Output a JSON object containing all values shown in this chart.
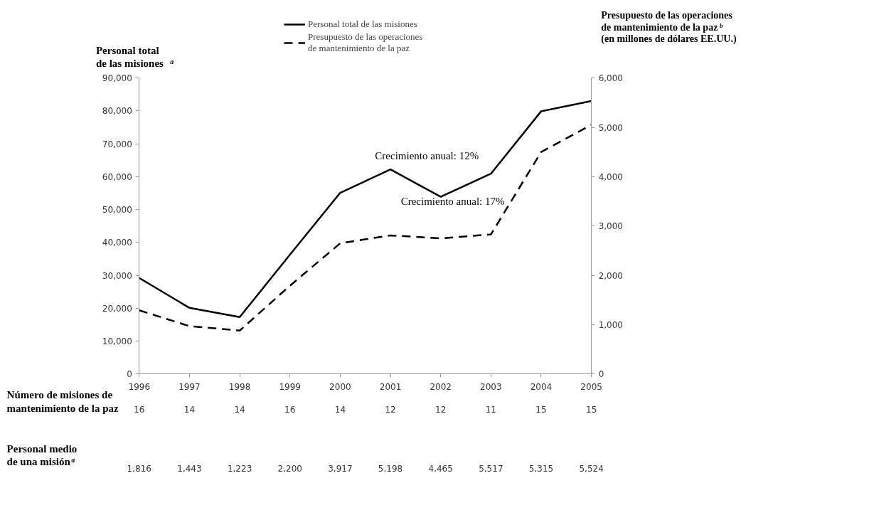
{
  "chart_data": {
    "type": "line",
    "ylabel": "Personal total\nde las misiones$^{a}$",
    "y2label": "Presupuesto de las operaciones\nde mantenimiento de la paz$^{b}$\n(en millones de dólares EE.UU.)",
    "x": [
      1996,
      1997,
      1998,
      1999,
      2000,
      2001,
      2002,
      2003,
      2004,
      2005
    ],
    "series": [
      {
        "name": "Personal total de las misiones",
        "color": "#000000",
        "line_style": "solid",
        "values": [
          29200,
          20100,
          17300,
          36300,
          55100,
          62200,
          53900,
          60900,
          79900,
          83000
        ]
      },
      {
        "name": "Presupuesto de las operaciones\nde mantenimiento de la paz",
        "color": "#000000",
        "line_style": "dashed",
        "axis": "y2",
        "values": [
          1290,
          970,
          880,
          1790,
          2650,
          2810,
          2750,
          2830,
          4500,
          5050
        ]
      }
    ],
    "xlim": [
      1996,
      2005
    ],
    "xticks": [
      1996,
      1997,
      1998,
      1999,
      2000,
      2001,
      2002,
      2003,
      2004,
      2005
    ],
    "ylim": [
      0,
      90000
    ],
    "yticks": [
      0,
      {
        "value": 10000,
        "label": "10,000"
      },
      {
        "value": 20000,
        "label": "20,000"
      },
      {
        "value": 30000,
        "label": "30,000"
      },
      {
        "value": 40000,
        "label": "40,000"
      },
      {
        "value": 50000,
        "label": "50,000"
      },
      {
        "value": 60000,
        "label": "60,000"
      },
      {
        "value": 70000,
        "label": "70,000"
      },
      {
        "value": 80000,
        "label": "80,000"
      },
      {
        "value": 90000,
        "label": "90,000"
      }
    ],
    "y2lim": [
      0,
      6000
    ],
    "y2ticks": [
      0,
      {
        "value": 1000,
        "label": "1,000"
      },
      {
        "value": 2000,
        "label": "2,000"
      },
      {
        "value": 3000,
        "label": "3,000"
      },
      {
        "value": 4000,
        "label": "4,000"
      },
      {
        "value": 5000,
        "label": "5,000"
      },
      {
        "value": 6000,
        "label": "6,000"
      }
    ],
    "grid": false,
    "legend": "top",
    "marker": "none",
    "annotations": [
      "Crecimiento anual: 12%",
      "Crecimiento anual: 17%",
      "Número de misiones de\nmantenimiento de la paz",
      "16",
      "14",
      "14",
      "16",
      "14",
      "12",
      "12",
      "11",
      "15",
      "15",
      "Personal medio\nde una misión$^{a}$",
      "1,816",
      "1,443",
      "1,223",
      "2,200",
      "3,917",
      "5,198",
      "4,465",
      "5,517",
      "5,315",
      "5,524"
    ]
  }
}
